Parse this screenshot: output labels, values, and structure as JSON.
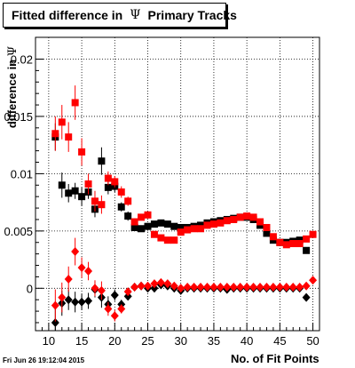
{
  "title": {
    "pre": "Fitted difference in",
    "symbol": "Ψ",
    "post": "Primary Tracks"
  },
  "footer": "Fri Jun 26 19:12:04 2015",
  "colors": {
    "black_series": "#000000",
    "red_series": "#ff0000",
    "grid": "#000000",
    "background": "#ffffff"
  },
  "chart_data": {
    "type": "scatter",
    "xlabel": "No. of Fit Points",
    "ylabel": {
      "text": "difference in",
      "symbol": "Ψ"
    },
    "xlim": [
      8,
      51
    ],
    "ylim": [
      -0.0037,
      0.0219
    ],
    "grid": true,
    "xticks": [
      10,
      15,
      20,
      25,
      30,
      35,
      40,
      45,
      50
    ],
    "yticks": [
      0,
      0.005,
      0.01,
      0.015,
      0.02
    ],
    "ytick_labels": [
      "0",
      "0.005",
      "0.01",
      "0.015",
      "0.02"
    ],
    "series": [
      {
        "marker": "square",
        "color": "#000000",
        "points": [
          [
            11,
            0.0132,
            0.0012
          ],
          [
            12,
            0.009,
            0.0011
          ],
          [
            13,
            0.0083,
            0.0008
          ],
          [
            14,
            0.0085,
            0.0007
          ],
          [
            15,
            0.008,
            0.0008
          ],
          [
            16,
            0.0084,
            0.0006
          ],
          [
            17,
            0.0069,
            0.0007
          ],
          [
            18,
            0.0111,
            0.0012
          ],
          [
            19,
            0.0088,
            0.0006
          ],
          [
            20,
            0.0089,
            0.0005
          ],
          [
            21,
            0.0071,
            0.0004
          ],
          [
            22,
            0.0063,
            0.0004
          ],
          [
            23,
            0.0053,
            0.0003
          ],
          [
            24,
            0.0052,
            0.0002
          ],
          [
            25,
            0.0054,
            0.0002
          ],
          [
            26,
            0.0056,
            0.0002
          ],
          [
            27,
            0.0057,
            0.0002
          ],
          [
            28,
            0.0056,
            0.0001
          ],
          [
            29,
            0.0054,
            0.0001
          ],
          [
            30,
            0.0053,
            0.0001
          ],
          [
            31,
            0.0053,
            0.0001
          ],
          [
            32,
            0.0054,
            0.0001
          ],
          [
            33,
            0.0055,
            0.0001
          ],
          [
            34,
            0.0057,
            0.0001
          ],
          [
            35,
            0.0058,
            0.0001
          ],
          [
            36,
            0.0059,
            0.0001
          ],
          [
            37,
            0.006,
            0.0001
          ],
          [
            38,
            0.0061,
            0.0001
          ],
          [
            39,
            0.0062,
            0.0001
          ],
          [
            40,
            0.0062,
            0.0001
          ],
          [
            41,
            0.006,
            0.0001
          ],
          [
            42,
            0.0055,
            0.0001
          ],
          [
            43,
            0.0048,
            0.0001
          ],
          [
            44,
            0.0042,
            0.0001
          ],
          [
            45,
            0.004,
            0.0001
          ],
          [
            46,
            0.004,
            0.0001
          ],
          [
            47,
            0.0041,
            0.0001
          ],
          [
            48,
            0.0042,
            0.0001
          ],
          [
            49,
            0.0033,
            0.0002
          ]
        ]
      },
      {
        "marker": "square",
        "color": "#ff0000",
        "points": [
          [
            11,
            0.0135,
            0.0015
          ],
          [
            12,
            0.0145,
            0.0015
          ],
          [
            13,
            0.0132,
            0.0013
          ],
          [
            14,
            0.0162,
            0.0015
          ],
          [
            15,
            0.0119,
            0.0012
          ],
          [
            16,
            0.0091,
            0.0009
          ],
          [
            17,
            0.0076,
            0.0009
          ],
          [
            18,
            0.0073,
            0.0008
          ],
          [
            19,
            0.0096,
            0.0006
          ],
          [
            20,
            0.0093,
            0.0005
          ],
          [
            21,
            0.0084,
            0.0005
          ],
          [
            22,
            0.0076,
            0.0004
          ],
          [
            23,
            0.0058,
            0.0003
          ],
          [
            24,
            0.0062,
            0.0002
          ],
          [
            25,
            0.0064,
            0.0002
          ],
          [
            26,
            0.0047,
            0.0002
          ],
          [
            27,
            0.0044,
            0.0002
          ],
          [
            28,
            0.0042,
            0.0001
          ],
          [
            29,
            0.0042,
            0.0001
          ],
          [
            30,
            0.0049,
            0.0001
          ],
          [
            31,
            0.0051,
            0.0001
          ],
          [
            32,
            0.0052,
            0.0001
          ],
          [
            33,
            0.0052,
            0.0001
          ],
          [
            34,
            0.0055,
            0.0001
          ],
          [
            35,
            0.0056,
            0.0001
          ],
          [
            36,
            0.0057,
            0.0001
          ],
          [
            37,
            0.0059,
            0.0001
          ],
          [
            38,
            0.006,
            0.0001
          ],
          [
            39,
            0.0062,
            0.0001
          ],
          [
            40,
            0.0063,
            0.0001
          ],
          [
            41,
            0.0062,
            0.0001
          ],
          [
            42,
            0.0058,
            0.0001
          ],
          [
            43,
            0.0053,
            0.0001
          ],
          [
            44,
            0.0045,
            0.0001
          ],
          [
            45,
            0.004,
            0.0001
          ],
          [
            46,
            0.0038,
            0.0001
          ],
          [
            47,
            0.0039,
            0.0001
          ],
          [
            48,
            0.0039,
            0.0001
          ],
          [
            49,
            0.0043,
            0.0002
          ],
          [
            50,
            0.0047,
            0.0002
          ]
        ]
      },
      {
        "marker": "diamond",
        "color": "#000000",
        "points": [
          [
            11,
            -0.003,
            0.0012
          ],
          [
            12,
            -0.0013,
            0.0011
          ],
          [
            13,
            -0.001,
            0.0009
          ],
          [
            14,
            -0.0012,
            0.0009
          ],
          [
            15,
            -0.0012,
            0.0007
          ],
          [
            16,
            -0.0011,
            0.0007
          ],
          [
            17,
            -0.0001,
            0.0007
          ],
          [
            18,
            -0.0008,
            0.0009
          ],
          [
            19,
            -0.0014,
            0.0007
          ],
          [
            20,
            -0.0006,
            0.0005
          ],
          [
            21,
            -0.0014,
            0.0004
          ],
          [
            22,
            -0.0007,
            0.0003
          ],
          [
            23,
            0.0001,
            0.0003
          ],
          [
            24,
            0.0002,
            0.0002
          ],
          [
            25,
            0.0,
            0.0002
          ],
          [
            26,
            0.0,
            0.0002
          ],
          [
            27,
            0.0003,
            0.0002
          ],
          [
            28,
            0.0002,
            0.0001
          ],
          [
            29,
            0.0,
            0.0001
          ],
          [
            30,
            -0.0002,
            0.0001
          ],
          [
            31,
            0.0,
            0.0001
          ],
          [
            32,
            0.0,
            0.0001
          ],
          [
            33,
            0.0,
            0.0001
          ],
          [
            34,
            0.0,
            0.0001
          ],
          [
            35,
            0.0,
            0.0001
          ],
          [
            36,
            0.0,
            0.0001
          ],
          [
            37,
            -0.0001,
            0.0001
          ],
          [
            38,
            0.0,
            0.0001
          ],
          [
            39,
            0.0,
            0.0001
          ],
          [
            40,
            0.0,
            0.0001
          ],
          [
            41,
            0.0,
            0.0001
          ],
          [
            42,
            0.0,
            0.0001
          ],
          [
            43,
            0.0,
            0.0001
          ],
          [
            44,
            0.0,
            0.0001
          ],
          [
            45,
            0.0,
            0.0001
          ],
          [
            46,
            0.0,
            0.0001
          ],
          [
            47,
            0.0,
            0.0001
          ],
          [
            48,
            0.0,
            0.0001
          ],
          [
            49,
            -0.0008,
            0.0002
          ]
        ]
      },
      {
        "marker": "diamond",
        "color": "#ff0000",
        "points": [
          [
            11,
            -0.0015,
            0.0014
          ],
          [
            12,
            -0.0008,
            0.0013
          ],
          [
            13,
            0.0008,
            0.0011
          ],
          [
            14,
            0.0032,
            0.0012
          ],
          [
            15,
            0.0018,
            0.0009
          ],
          [
            16,
            0.0015,
            0.0008
          ],
          [
            17,
            0.0,
            0.0007
          ],
          [
            18,
            -0.0002,
            0.0008
          ],
          [
            19,
            -0.0018,
            0.0006
          ],
          [
            20,
            -0.0024,
            0.0005
          ],
          [
            21,
            -0.0018,
            0.0004
          ],
          [
            22,
            -0.0003,
            0.0003
          ],
          [
            23,
            0.0001,
            0.0002
          ],
          [
            24,
            0.0002,
            0.0002
          ],
          [
            25,
            0.0002,
            0.0002
          ],
          [
            26,
            0.0004,
            0.0002
          ],
          [
            27,
            0.0005,
            0.0002
          ],
          [
            28,
            0.0004,
            0.0001
          ],
          [
            29,
            0.0002,
            0.0001
          ],
          [
            30,
            0.0,
            0.0001
          ],
          [
            31,
            0.0001,
            0.0001
          ],
          [
            32,
            0.0001,
            0.0001
          ],
          [
            33,
            0.0001,
            0.0001
          ],
          [
            34,
            0.0001,
            0.0001
          ],
          [
            35,
            0.0001,
            0.0001
          ],
          [
            36,
            0.0001,
            0.0001
          ],
          [
            37,
            0.0001,
            0.0001
          ],
          [
            38,
            0.0001,
            0.0001
          ],
          [
            39,
            0.0001,
            0.0001
          ],
          [
            40,
            0.0001,
            0.0001
          ],
          [
            41,
            0.0001,
            0.0001
          ],
          [
            42,
            0.0001,
            0.0001
          ],
          [
            43,
            0.0001,
            0.0001
          ],
          [
            44,
            0.0001,
            0.0001
          ],
          [
            45,
            0.0001,
            0.0001
          ],
          [
            46,
            0.0001,
            0.0001
          ],
          [
            47,
            0.0001,
            0.0001
          ],
          [
            48,
            0.0001,
            0.0001
          ],
          [
            49,
            0.0002,
            0.0002
          ],
          [
            50,
            0.0007,
            0.0002
          ]
        ]
      }
    ]
  }
}
